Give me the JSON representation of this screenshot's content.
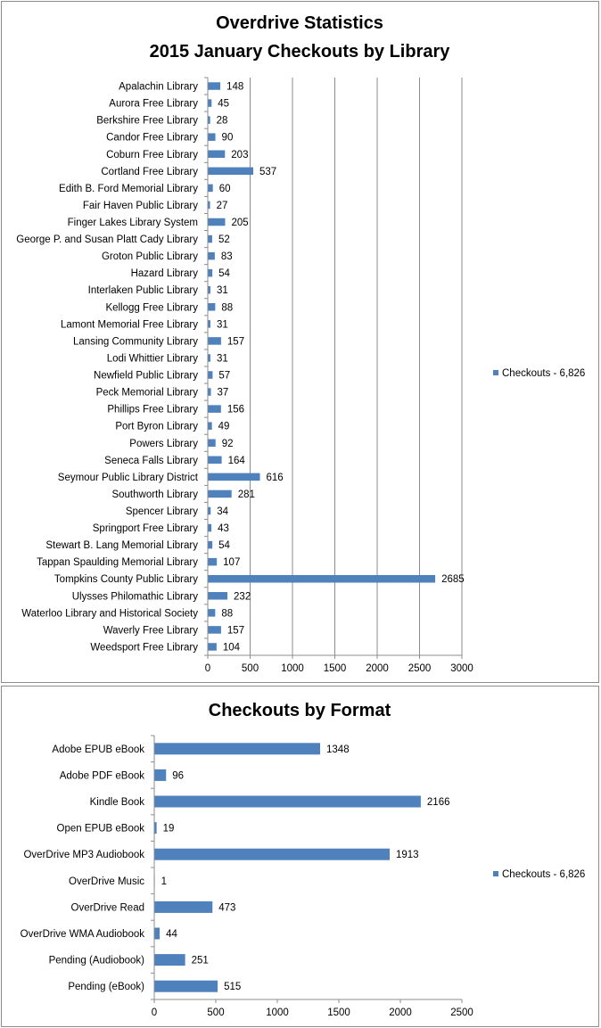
{
  "chart_data": [
    {
      "type": "bar",
      "orientation": "horizontal",
      "title": "Overdrive Statistics",
      "subtitle": "2015 January Checkouts by Library",
      "categories": [
        "Apalachin Library",
        "Aurora Free Library",
        "Berkshire Free Library",
        "Candor Free Library",
        "Coburn Free Library",
        "Cortland Free Library",
        "Edith B. Ford Memorial Library",
        "Fair Haven Public Library",
        "Finger Lakes Library System",
        "George P. and Susan Platt Cady Library",
        "Groton Public Library",
        "Hazard Library",
        "Interlaken Public Library",
        "Kellogg Free Library",
        "Lamont Memorial Free Library",
        "Lansing Community Library",
        "Lodi Whittier Library",
        "Newfield Public Library",
        "Peck Memorial Library",
        "Phillips Free Library",
        "Port Byron Library",
        "Powers Library",
        "Seneca Falls Library",
        "Seymour Public Library District",
        "Southworth Library",
        "Spencer Library",
        "Springport Free Library",
        "Stewart B. Lang Memorial Library",
        "Tappan Spaulding Memorial Library",
        "Tompkins County Public Library",
        "Ulysses Philomathic Library",
        "Waterloo Library and Historical Society",
        "Waverly Free Library",
        "Weedsport Free Library"
      ],
      "series": [
        {
          "name": "Checkouts - 6,826",
          "values": [
            148,
            45,
            28,
            90,
            203,
            537,
            60,
            27,
            205,
            52,
            83,
            54,
            31,
            88,
            31,
            157,
            31,
            57,
            37,
            156,
            49,
            92,
            164,
            616,
            281,
            34,
            43,
            54,
            107,
            2685,
            232,
            88,
            157,
            104
          ]
        }
      ],
      "xlim": [
        0,
        3000
      ],
      "xticks": [
        0,
        500,
        1000,
        1500,
        2000,
        2500,
        3000
      ],
      "grid": "vertical",
      "legend": "right",
      "bar_color": "#4f81bd"
    },
    {
      "type": "bar",
      "orientation": "horizontal",
      "title": "Checkouts by Format",
      "categories": [
        "Adobe EPUB eBook",
        "Adobe PDF eBook",
        "Kindle Book",
        "Open EPUB eBook",
        "OverDrive MP3 Audiobook",
        "OverDrive Music",
        "OverDrive Read",
        "OverDrive WMA Audiobook",
        "Pending (Audiobook)",
        "Pending (eBook)"
      ],
      "series": [
        {
          "name": "Checkouts - 6,826",
          "values": [
            1348,
            96,
            2166,
            19,
            1913,
            1,
            473,
            44,
            251,
            515
          ]
        }
      ],
      "xlim": [
        0,
        2500
      ],
      "xticks": [
        0,
        500,
        1000,
        1500,
        2000,
        2500
      ],
      "grid": "none",
      "legend": "right",
      "bar_color": "#4f81bd"
    }
  ]
}
